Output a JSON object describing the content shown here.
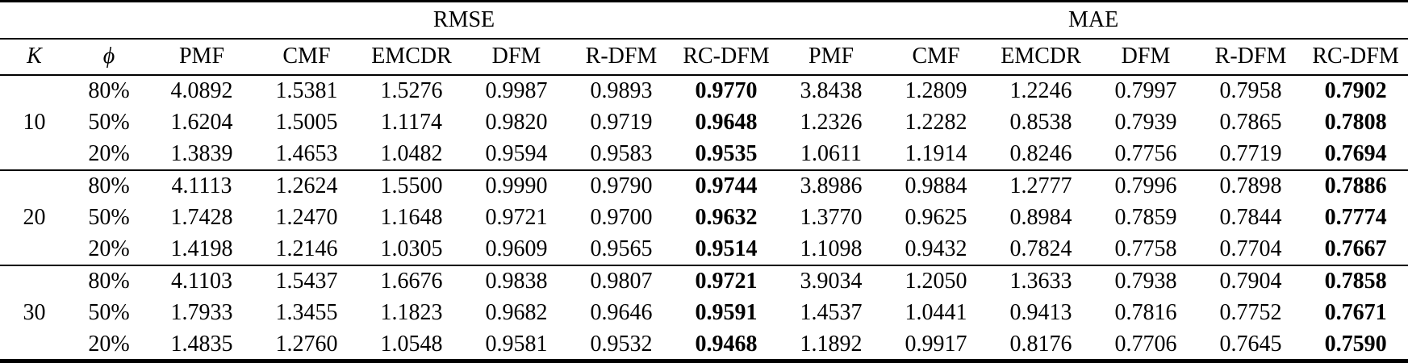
{
  "table": {
    "group_headers": [
      {
        "label": "RMSE",
        "span": 6
      },
      {
        "label": "MAE",
        "span": 6
      }
    ],
    "col_headers": [
      "K",
      "ϕ",
      "PMF",
      "CMF",
      "EMCDR",
      "DFM",
      "R-DFM",
      "RC-DFM",
      "PMF",
      "CMF",
      "EMCDR",
      "DFM",
      "R-DFM",
      "RC-DFM"
    ],
    "bold_value_indices": [
      5,
      11
    ],
    "groups": [
      {
        "k": "10",
        "rows": [
          {
            "phi": "80%",
            "values": [
              "4.0892",
              "1.5381",
              "1.5276",
              "0.9987",
              "0.9893",
              "0.9770",
              "3.8438",
              "1.2809",
              "1.2246",
              "0.7997",
              "0.7958",
              "0.7902"
            ]
          },
          {
            "phi": "50%",
            "values": [
              "1.6204",
              "1.5005",
              "1.1174",
              "0.9820",
              "0.9719",
              "0.9648",
              "1.2326",
              "1.2282",
              "0.8538",
              "0.7939",
              "0.7865",
              "0.7808"
            ]
          },
          {
            "phi": "20%",
            "values": [
              "1.3839",
              "1.4653",
              "1.0482",
              "0.9594",
              "0.9583",
              "0.9535",
              "1.0611",
              "1.1914",
              "0.8246",
              "0.7756",
              "0.7719",
              "0.7694"
            ]
          }
        ]
      },
      {
        "k": "20",
        "rows": [
          {
            "phi": "80%",
            "values": [
              "4.1113",
              "1.2624",
              "1.5500",
              "0.9990",
              "0.9790",
              "0.9744",
              "3.8986",
              "0.9884",
              "1.2777",
              "0.7996",
              "0.7898",
              "0.7886"
            ]
          },
          {
            "phi": "50%",
            "values": [
              "1.7428",
              "1.2470",
              "1.1648",
              "0.9721",
              "0.9700",
              "0.9632",
              "1.3770",
              "0.9625",
              "0.8984",
              "0.7859",
              "0.7844",
              "0.7774"
            ]
          },
          {
            "phi": "20%",
            "values": [
              "1.4198",
              "1.2146",
              "1.0305",
              "0.9609",
              "0.9565",
              "0.9514",
              "1.1098",
              "0.9432",
              "0.7824",
              "0.7758",
              "0.7704",
              "0.7667"
            ]
          }
        ]
      },
      {
        "k": "30",
        "rows": [
          {
            "phi": "80%",
            "values": [
              "4.1103",
              "1.5437",
              "1.6676",
              "0.9838",
              "0.9807",
              "0.9721",
              "3.9034",
              "1.2050",
              "1.3633",
              "0.7938",
              "0.7904",
              "0.7858"
            ]
          },
          {
            "phi": "50%",
            "values": [
              "1.7933",
              "1.3455",
              "1.1823",
              "0.9682",
              "0.9646",
              "0.9591",
              "1.4537",
              "1.0441",
              "0.9413",
              "0.7816",
              "0.7752",
              "0.7671"
            ]
          },
          {
            "phi": "20%",
            "values": [
              "1.4835",
              "1.2760",
              "1.0548",
              "0.9581",
              "0.9532",
              "0.9468",
              "1.1892",
              "0.9917",
              "0.8176",
              "0.7706",
              "0.7645",
              "0.7590"
            ]
          }
        ]
      }
    ]
  }
}
